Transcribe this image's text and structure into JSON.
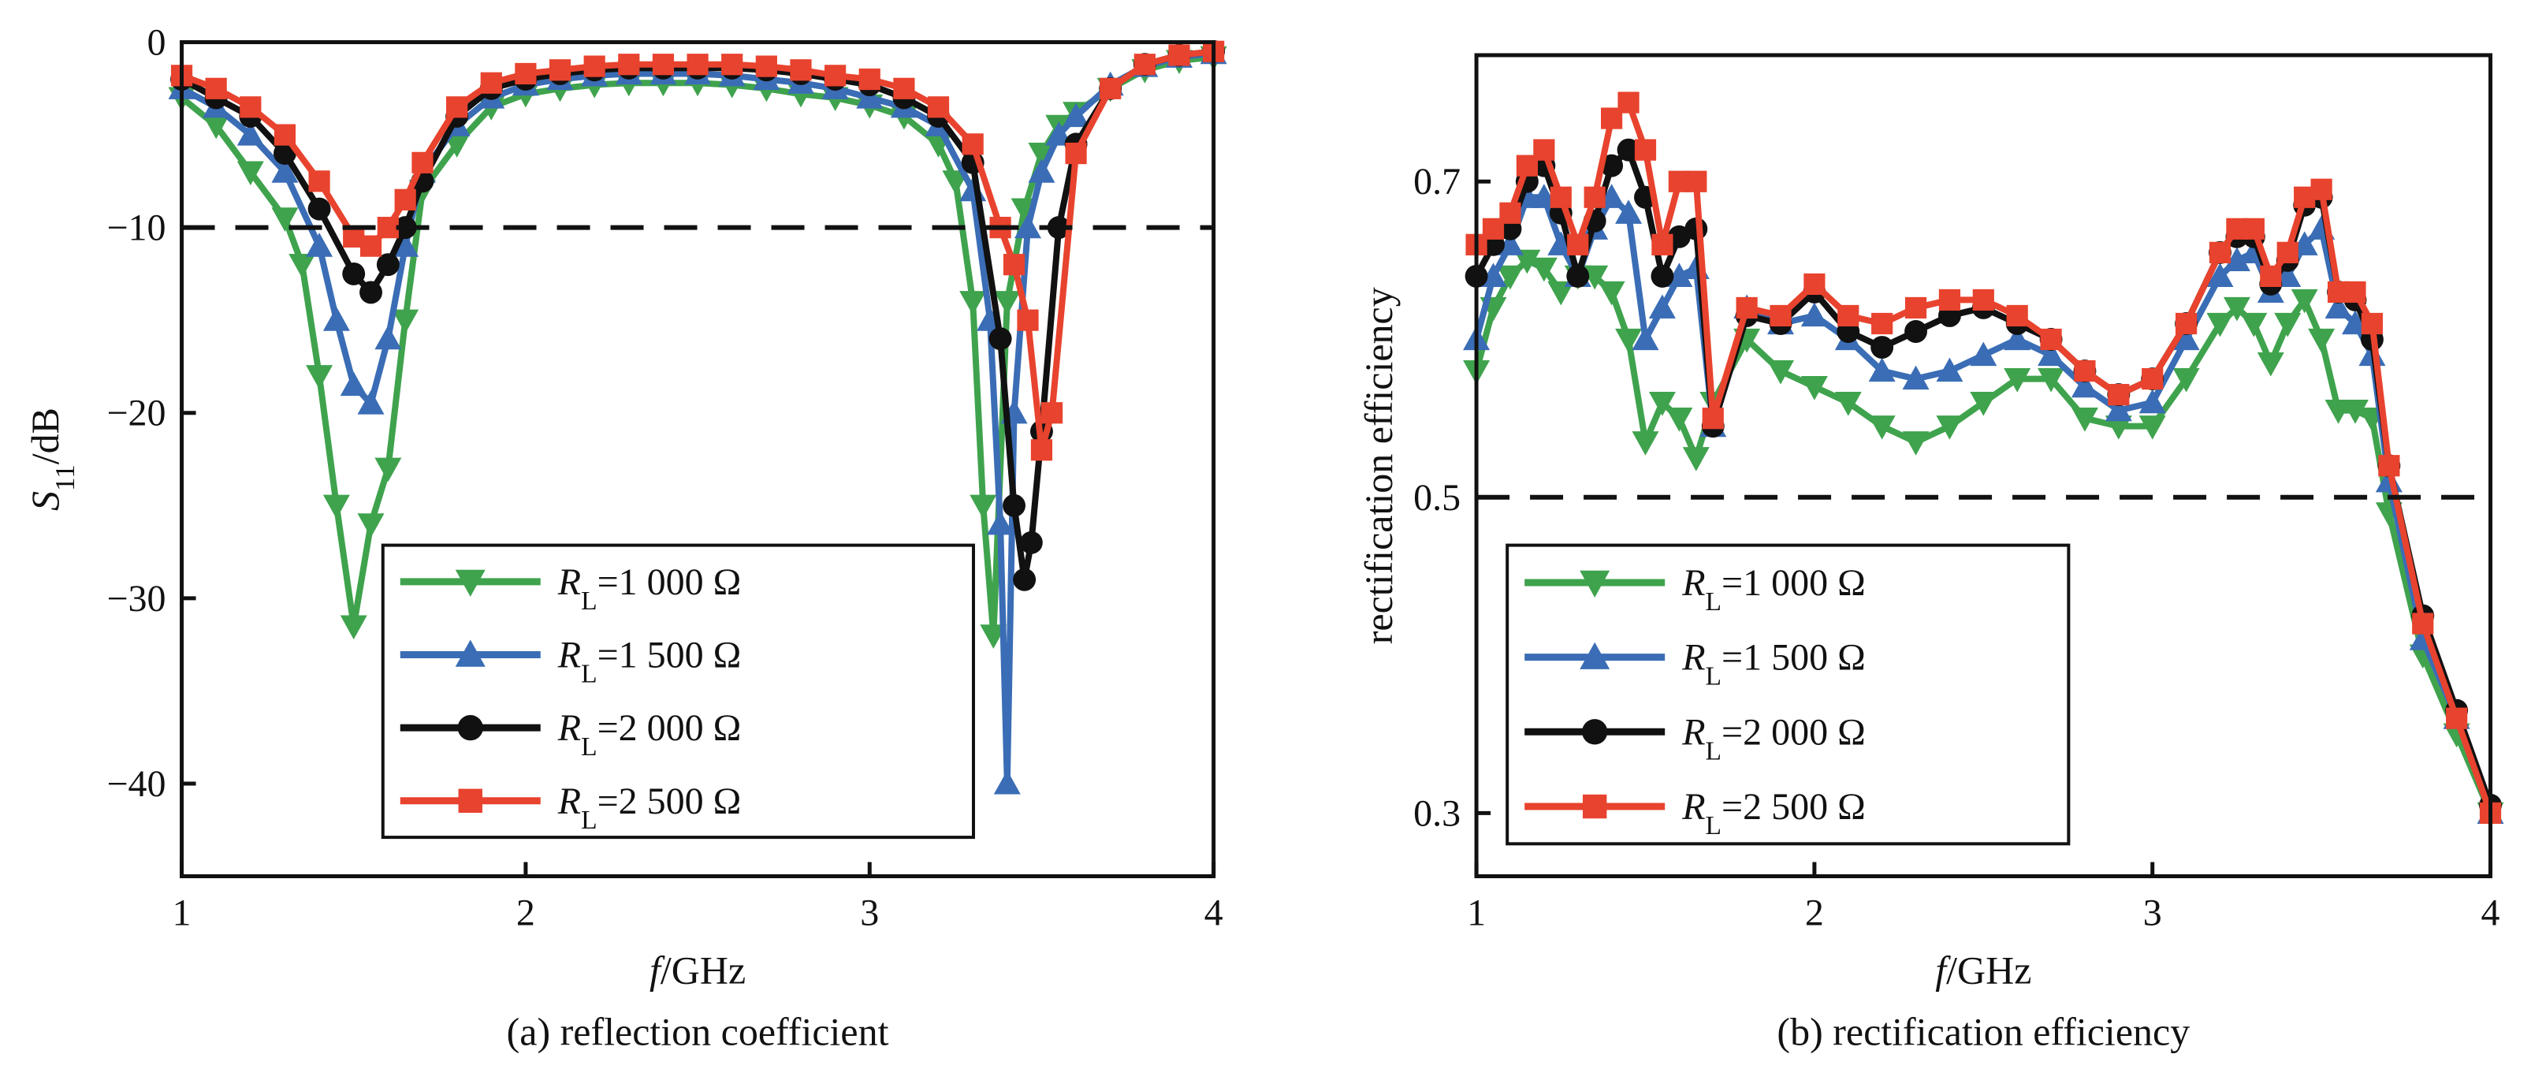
{
  "chart_data": [
    {
      "type": "line",
      "caption": "(a)  reflection coefficient",
      "xlabel": "f/GHz",
      "ylabel": "S11/dB",
      "xlim": [
        1,
        4
      ],
      "ylim": [
        -45,
        0
      ],
      "xticks": [
        "1",
        "2",
        "3",
        "4"
      ],
      "yticks": [
        "0",
        "−10",
        "−20",
        "−30",
        "−40"
      ],
      "threshold": -10,
      "legend_position": "bottom-center",
      "series": [
        {
          "name": "RL=1 000 Ω",
          "marker": "triangle-down",
          "color": "#3fa34d",
          "x": [
            1.0,
            1.1,
            1.2,
            1.3,
            1.35,
            1.4,
            1.45,
            1.5,
            1.55,
            1.6,
            1.65,
            1.7,
            1.8,
            1.9,
            2.0,
            2.1,
            2.2,
            2.3,
            2.4,
            2.5,
            2.6,
            2.7,
            2.8,
            2.9,
            3.0,
            3.1,
            3.2,
            3.25,
            3.3,
            3.33,
            3.36,
            3.4,
            3.45,
            3.5,
            3.55,
            3.6,
            3.7,
            3.8,
            3.9,
            4.0
          ],
          "y": [
            -3,
            -4.5,
            -7,
            -9.5,
            -12,
            -18,
            -25,
            -31.5,
            -26,
            -23,
            -15,
            -8,
            -5.5,
            -3.5,
            -2.8,
            -2.5,
            -2.3,
            -2.2,
            -2.2,
            -2.2,
            -2.3,
            -2.5,
            -2.8,
            -3,
            -3.4,
            -4,
            -5.5,
            -7.5,
            -14,
            -25,
            -32,
            -14,
            -9,
            -6,
            -4.5,
            -3.8,
            -2.5,
            -1.5,
            -1,
            -0.8
          ]
        },
        {
          "name": "RL=1 500 Ω",
          "marker": "triangle-up",
          "color": "#3a6db5",
          "x": [
            1.0,
            1.1,
            1.2,
            1.3,
            1.4,
            1.45,
            1.5,
            1.55,
            1.6,
            1.65,
            1.7,
            1.8,
            1.9,
            2.0,
            2.1,
            2.2,
            2.3,
            2.4,
            2.5,
            2.6,
            2.7,
            2.8,
            2.9,
            3.0,
            3.1,
            3.2,
            3.3,
            3.35,
            3.38,
            3.4,
            3.42,
            3.46,
            3.5,
            3.55,
            3.6,
            3.7,
            3.8,
            3.9,
            4.0
          ],
          "y": [
            -2.5,
            -3.5,
            -5,
            -7,
            -11,
            -15,
            -18.5,
            -19.5,
            -16,
            -11,
            -7,
            -4.5,
            -3,
            -2.3,
            -2,
            -1.8,
            -1.7,
            -1.7,
            -1.7,
            -1.8,
            -2,
            -2.2,
            -2.5,
            -3,
            -3.5,
            -4.5,
            -8,
            -15,
            -26,
            -40,
            -20,
            -10,
            -7,
            -5,
            -4,
            -2.3,
            -1.3,
            -0.8,
            -0.6
          ]
        },
        {
          "name": "RL=2 000 Ω",
          "marker": "circle",
          "color": "#111111",
          "x": [
            1.0,
            1.1,
            1.2,
            1.3,
            1.4,
            1.5,
            1.55,
            1.6,
            1.65,
            1.7,
            1.8,
            1.9,
            2.0,
            2.1,
            2.2,
            2.3,
            2.4,
            2.5,
            2.6,
            2.7,
            2.8,
            2.9,
            3.0,
            3.1,
            3.2,
            3.3,
            3.38,
            3.42,
            3.45,
            3.47,
            3.5,
            3.55,
            3.6,
            3.7,
            3.8,
            3.9,
            4.0
          ],
          "y": [
            -2,
            -3,
            -4,
            -6,
            -9,
            -12.5,
            -13.5,
            -12,
            -10,
            -7.5,
            -4,
            -2.5,
            -2,
            -1.7,
            -1.5,
            -1.4,
            -1.4,
            -1.4,
            -1.4,
            -1.5,
            -1.7,
            -2,
            -2.3,
            -3,
            -4,
            -6.5,
            -16,
            -25,
            -29,
            -27,
            -21,
            -10,
            -5.5,
            -2.5,
            -1.2,
            -0.7,
            -0.5
          ]
        },
        {
          "name": "RL=2 500 Ω",
          "marker": "square",
          "color": "#e8432e",
          "x": [
            1.0,
            1.1,
            1.2,
            1.3,
            1.4,
            1.5,
            1.55,
            1.6,
            1.65,
            1.7,
            1.8,
            1.9,
            2.0,
            2.1,
            2.2,
            2.3,
            2.4,
            2.5,
            2.6,
            2.7,
            2.8,
            2.9,
            3.0,
            3.1,
            3.2,
            3.3,
            3.38,
            3.42,
            3.46,
            3.5,
            3.53,
            3.6,
            3.7,
            3.8,
            3.9,
            4.0
          ],
          "y": [
            -1.8,
            -2.5,
            -3.5,
            -5,
            -7.5,
            -10.5,
            -11,
            -10,
            -8.5,
            -6.5,
            -3.5,
            -2.2,
            -1.7,
            -1.5,
            -1.3,
            -1.2,
            -1.2,
            -1.2,
            -1.2,
            -1.3,
            -1.5,
            -1.8,
            -2,
            -2.5,
            -3.5,
            -5.5,
            -10,
            -12,
            -15,
            -22,
            -20,
            -6,
            -2.5,
            -1.2,
            -0.7,
            -0.5
          ]
        }
      ]
    },
    {
      "type": "line",
      "caption": "(b) rectification efficiency",
      "xlabel": "f/GHz",
      "ylabel": "rectification efficiency",
      "xlim": [
        1,
        4
      ],
      "ylim": [
        0.26,
        0.78
      ],
      "xticks": [
        "1",
        "2",
        "3",
        "4"
      ],
      "yticks": [
        "0.7",
        "0.5",
        "0.3"
      ],
      "threshold": 0.5,
      "legend_position": "bottom-left",
      "series": [
        {
          "name": "RL=1 000 Ω",
          "marker": "triangle-down",
          "color": "#3fa34d",
          "x": [
            1.0,
            1.05,
            1.1,
            1.15,
            1.2,
            1.25,
            1.3,
            1.35,
            1.4,
            1.45,
            1.5,
            1.55,
            1.6,
            1.65,
            1.7,
            1.8,
            1.9,
            2.0,
            2.1,
            2.2,
            2.3,
            2.4,
            2.5,
            2.6,
            2.7,
            2.8,
            2.9,
            3.0,
            3.1,
            3.2,
            3.25,
            3.3,
            3.35,
            3.4,
            3.45,
            3.5,
            3.55,
            3.6,
            3.65,
            3.7,
            3.8,
            3.9,
            4.0
          ],
          "y": [
            0.58,
            0.62,
            0.64,
            0.65,
            0.645,
            0.63,
            0.64,
            0.64,
            0.63,
            0.6,
            0.535,
            0.56,
            0.55,
            0.525,
            0.56,
            0.6,
            0.58,
            0.57,
            0.56,
            0.545,
            0.535,
            0.545,
            0.56,
            0.575,
            0.575,
            0.55,
            0.545,
            0.545,
            0.575,
            0.61,
            0.62,
            0.61,
            0.585,
            0.61,
            0.625,
            0.6,
            0.555,
            0.555,
            0.55,
            0.49,
            0.4,
            0.35,
            0.3
          ]
        },
        {
          "name": "RL=1 500 Ω",
          "marker": "triangle-up",
          "color": "#3a6db5",
          "x": [
            1.0,
            1.05,
            1.1,
            1.15,
            1.2,
            1.25,
            1.3,
            1.35,
            1.4,
            1.45,
            1.5,
            1.55,
            1.6,
            1.65,
            1.7,
            1.8,
            1.9,
            2.0,
            2.1,
            2.2,
            2.3,
            2.4,
            2.5,
            2.6,
            2.7,
            2.8,
            2.9,
            3.0,
            3.1,
            3.2,
            3.25,
            3.3,
            3.35,
            3.4,
            3.45,
            3.5,
            3.55,
            3.6,
            3.65,
            3.7,
            3.8,
            3.9,
            4.0
          ],
          "y": [
            0.6,
            0.64,
            0.66,
            0.69,
            0.69,
            0.66,
            0.64,
            0.67,
            0.69,
            0.68,
            0.6,
            0.62,
            0.64,
            0.645,
            0.545,
            0.62,
            0.61,
            0.615,
            0.6,
            0.58,
            0.575,
            0.58,
            0.59,
            0.6,
            0.59,
            0.57,
            0.555,
            0.56,
            0.6,
            0.64,
            0.65,
            0.655,
            0.63,
            0.64,
            0.66,
            0.67,
            0.62,
            0.61,
            0.59,
            0.51,
            0.41,
            0.36,
            0.3
          ]
        },
        {
          "name": "RL=2 000 Ω",
          "marker": "circle",
          "color": "#111111",
          "x": [
            1.0,
            1.05,
            1.1,
            1.15,
            1.2,
            1.25,
            1.3,
            1.35,
            1.4,
            1.45,
            1.5,
            1.55,
            1.6,
            1.65,
            1.7,
            1.8,
            1.9,
            2.0,
            2.1,
            2.2,
            2.3,
            2.4,
            2.5,
            2.6,
            2.7,
            2.8,
            2.9,
            3.0,
            3.1,
            3.2,
            3.25,
            3.3,
            3.35,
            3.4,
            3.45,
            3.5,
            3.55,
            3.6,
            3.65,
            3.7,
            3.8,
            3.9,
            4.0
          ],
          "y": [
            0.64,
            0.66,
            0.67,
            0.7,
            0.71,
            0.68,
            0.64,
            0.675,
            0.71,
            0.72,
            0.69,
            0.64,
            0.665,
            0.67,
            0.545,
            0.615,
            0.61,
            0.63,
            0.605,
            0.595,
            0.605,
            0.615,
            0.62,
            0.61,
            0.6,
            0.58,
            0.565,
            0.575,
            0.61,
            0.655,
            0.665,
            0.665,
            0.635,
            0.65,
            0.685,
            0.69,
            0.63,
            0.625,
            0.6,
            0.52,
            0.425,
            0.365,
            0.305
          ]
        },
        {
          "name": "RL=2 500 Ω",
          "marker": "square",
          "color": "#e8432e",
          "x": [
            1.0,
            1.05,
            1.1,
            1.15,
            1.2,
            1.25,
            1.3,
            1.35,
            1.4,
            1.45,
            1.5,
            1.55,
            1.6,
            1.65,
            1.7,
            1.8,
            1.9,
            2.0,
            2.1,
            2.2,
            2.3,
            2.4,
            2.5,
            2.6,
            2.7,
            2.8,
            2.9,
            3.0,
            3.1,
            3.2,
            3.25,
            3.3,
            3.35,
            3.4,
            3.45,
            3.5,
            3.55,
            3.6,
            3.65,
            3.7,
            3.8,
            3.9,
            4.0
          ],
          "y": [
            0.66,
            0.67,
            0.68,
            0.71,
            0.72,
            0.69,
            0.66,
            0.69,
            0.74,
            0.75,
            0.72,
            0.66,
            0.7,
            0.7,
            0.55,
            0.62,
            0.615,
            0.635,
            0.615,
            0.61,
            0.62,
            0.625,
            0.625,
            0.615,
            0.6,
            0.58,
            0.565,
            0.575,
            0.61,
            0.655,
            0.67,
            0.67,
            0.64,
            0.655,
            0.69,
            0.695,
            0.63,
            0.63,
            0.61,
            0.52,
            0.42,
            0.36,
            0.3
          ]
        }
      ]
    }
  ]
}
